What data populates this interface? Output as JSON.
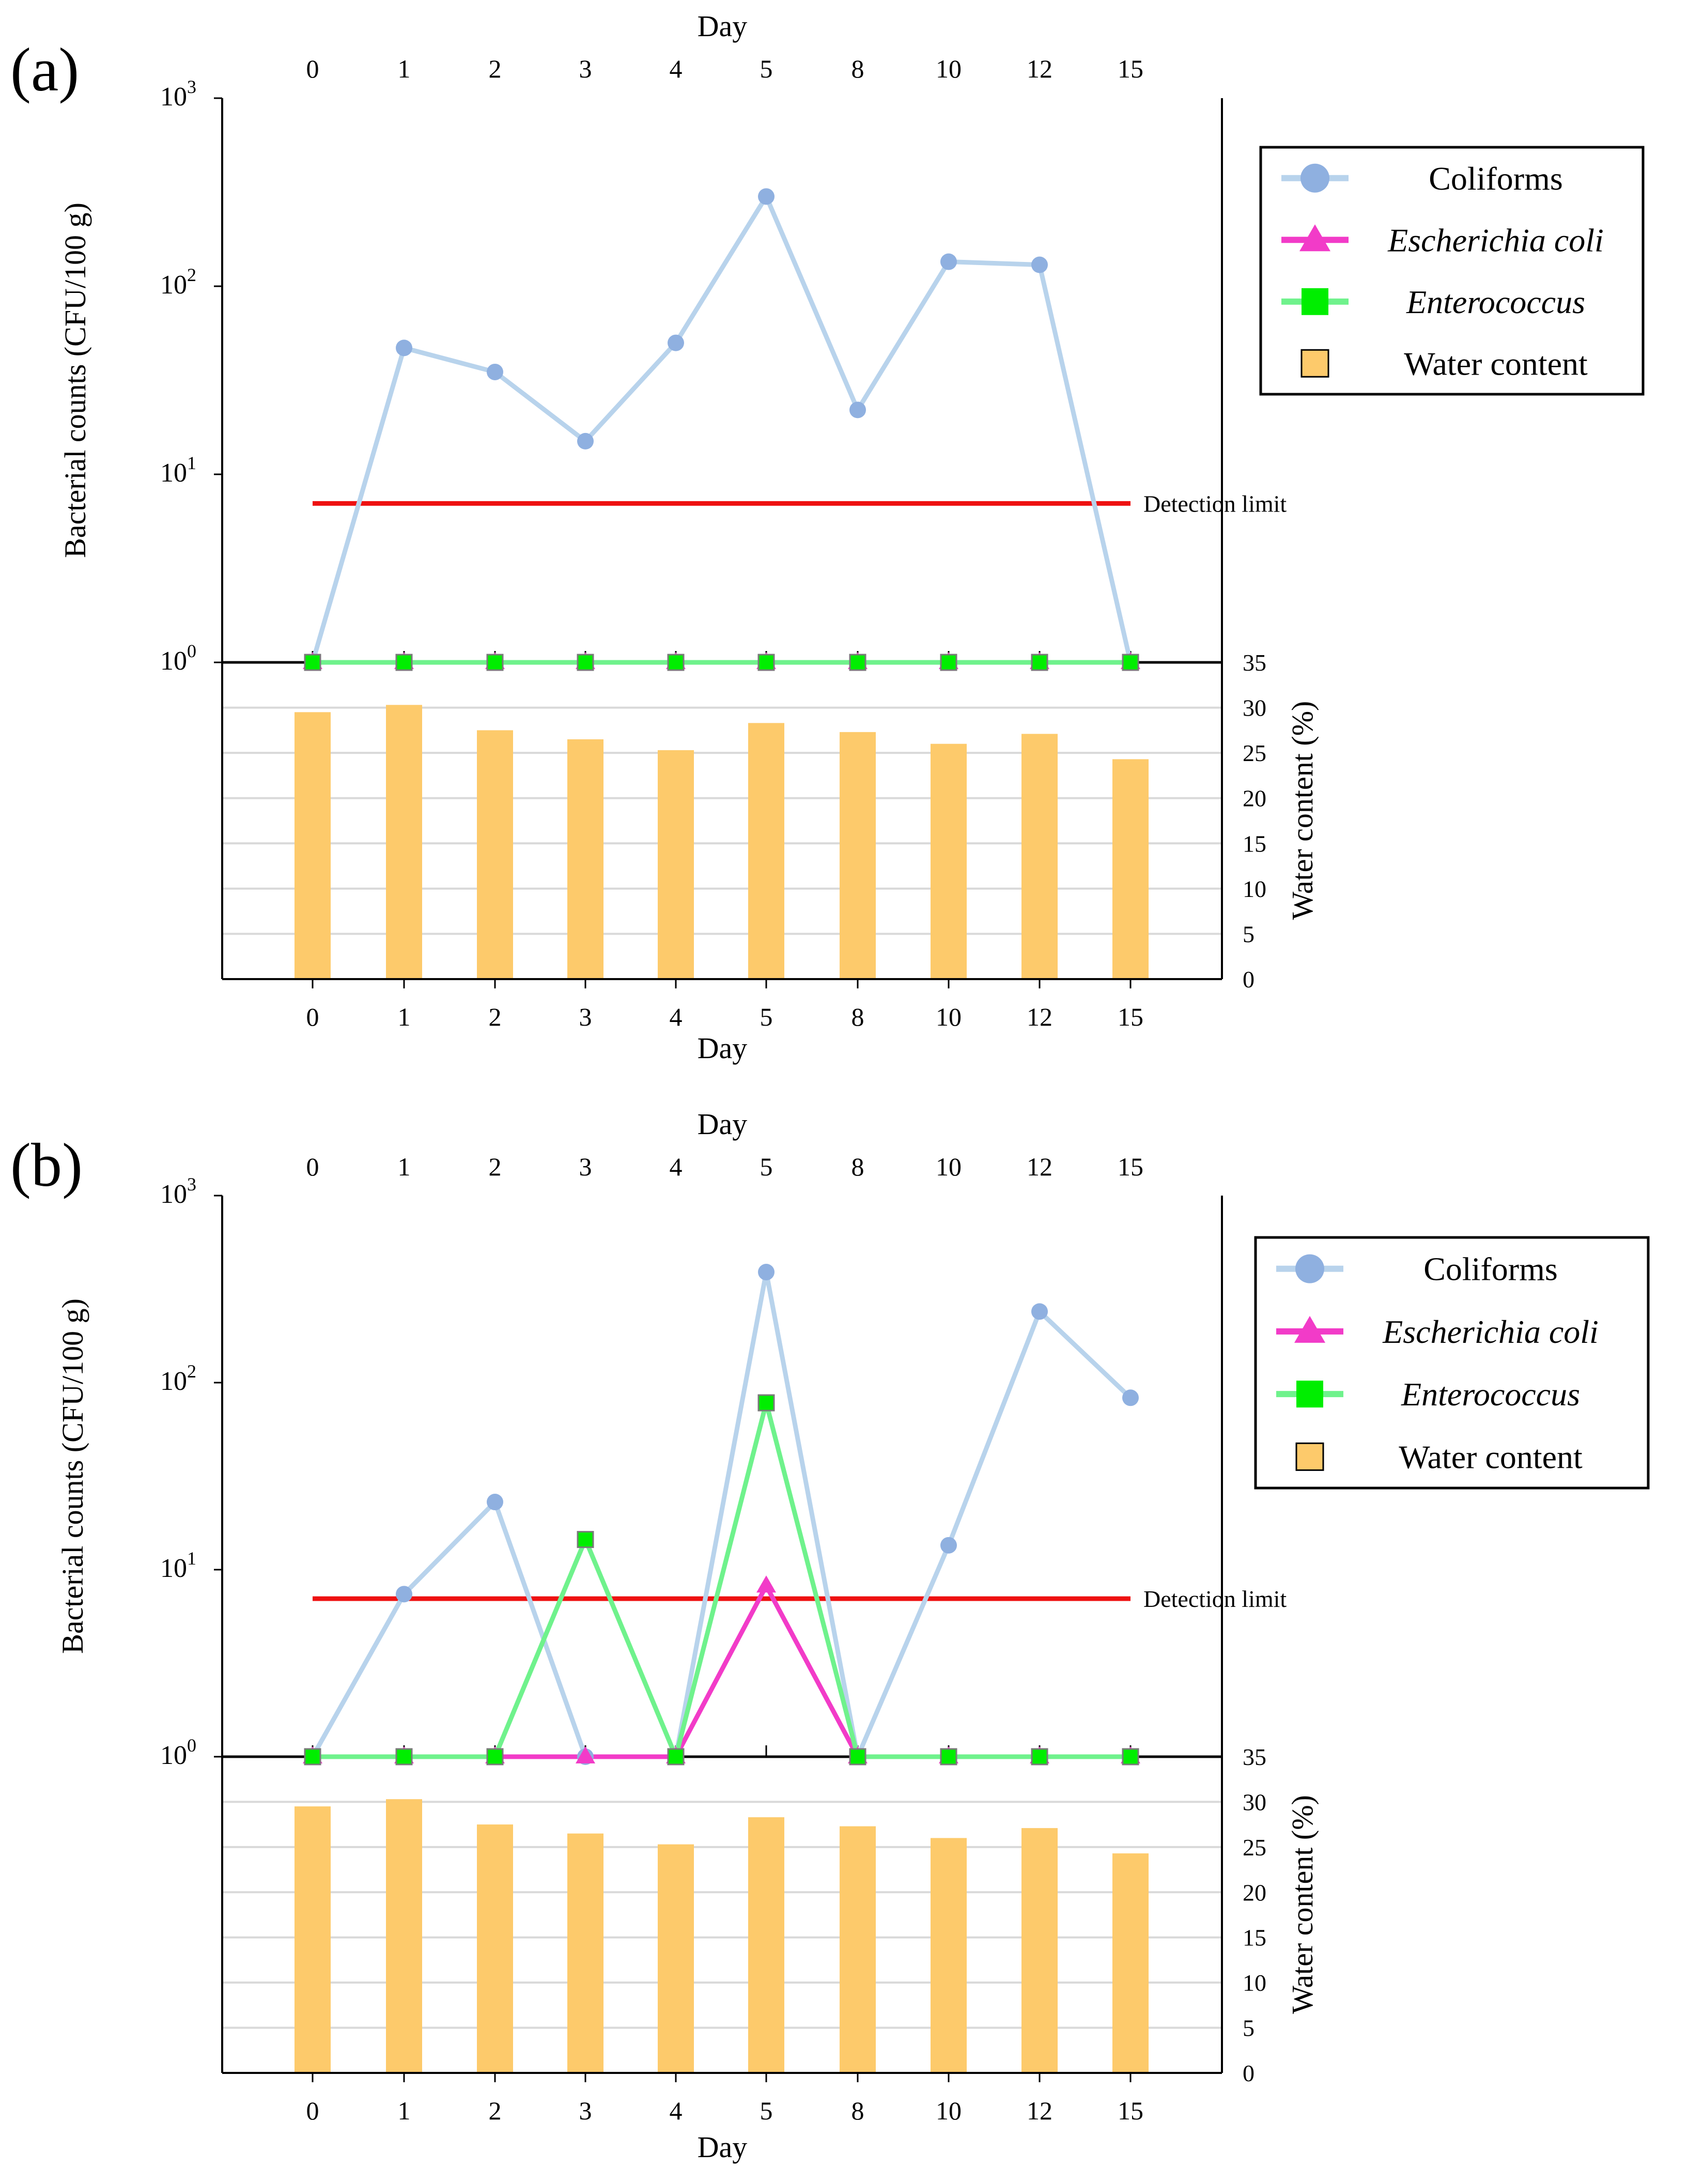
{
  "colors": {
    "coliforms_line": "#b8d3ec",
    "coliforms_marker": "#8fb0e0",
    "ecoli": "#f23bc8",
    "enterococcus_line": "#6ff28c",
    "enterococcus_marker": "#00ee00",
    "water": "#fdca6b",
    "detection": "#ee1111",
    "gridline": "#d9d9d9",
    "axis": "#000000"
  },
  "chart_data": [
    {
      "panel_label": "(a)",
      "type": "line+bar",
      "categories": [
        "0",
        "1",
        "2",
        "3",
        "4",
        "5",
        "8",
        "10",
        "12",
        "15"
      ],
      "x_top_label": "Day",
      "x_bottom_label": "Day",
      "ylabel": "Bacterial counts (CFU/100 g)",
      "ylabel2": "Water content  (%)",
      "yscale": "log",
      "ylim": [
        1,
        1000
      ],
      "y_ticks": [
        {
          "base": "10",
          "exp": "0"
        },
        {
          "base": "10",
          "exp": "1"
        },
        {
          "base": "10",
          "exp": "2"
        },
        {
          "base": "10",
          "exp": "3"
        }
      ],
      "y2lim": [
        0,
        35
      ],
      "y2_ticks": [
        "0",
        "5",
        "10",
        "15",
        "20",
        "25",
        "30",
        "35"
      ],
      "detection_limit": {
        "value": 7,
        "label": "Detection limit"
      },
      "series": [
        {
          "name": "Coliforms",
          "values": [
            1,
            47,
            35,
            15,
            50,
            300,
            22,
            135,
            130,
            1
          ]
        },
        {
          "name": "Escherichia coli",
          "values": [
            1,
            1,
            1,
            1,
            1,
            1,
            1,
            1,
            1,
            1
          ]
        },
        {
          "name": "Enterococcus",
          "values": [
            1,
            1,
            1,
            1,
            1,
            1,
            1,
            1,
            1,
            1
          ]
        }
      ],
      "water_content": {
        "name": "Water content",
        "values": [
          29.5,
          30.3,
          27.5,
          26.5,
          25.3,
          28.3,
          27.3,
          26.0,
          27.1,
          24.3
        ]
      },
      "legend": [
        "Coliforms",
        "Escherichia coli",
        "Enterococcus",
        "Water content"
      ]
    },
    {
      "panel_label": "(b)",
      "type": "line+bar",
      "categories": [
        "0",
        "1",
        "2",
        "3",
        "4",
        "5",
        "8",
        "10",
        "12",
        "15"
      ],
      "x_top_label": "Day",
      "x_bottom_label": "Day",
      "ylabel": "Bacterial counts (CFU/100 g)",
      "ylabel2": "Water content  (%)",
      "yscale": "log",
      "ylim": [
        1,
        1000
      ],
      "y_ticks": [
        {
          "base": "10",
          "exp": "0"
        },
        {
          "base": "10",
          "exp": "1"
        },
        {
          "base": "10",
          "exp": "2"
        },
        {
          "base": "10",
          "exp": "3"
        }
      ],
      "y2lim": [
        0,
        35
      ],
      "y2_ticks": [
        "0",
        "5",
        "10",
        "15",
        "20",
        "25",
        "30",
        "35"
      ],
      "detection_limit": {
        "value": 7,
        "label": "Detection limit"
      },
      "series": [
        {
          "name": "Coliforms",
          "values": [
            1,
            7.4,
            23,
            1,
            1,
            390,
            1,
            13.5,
            240,
            83
          ]
        },
        {
          "name": "Escherichia coli",
          "values": [
            1,
            1,
            1,
            1,
            1,
            8.2,
            1,
            1,
            1,
            1
          ]
        },
        {
          "name": "Enterococcus",
          "values": [
            1,
            1,
            1,
            14.5,
            1,
            78,
            1,
            1,
            1,
            1
          ]
        }
      ],
      "water_content": {
        "name": "Water content",
        "values": [
          29.5,
          30.3,
          27.5,
          26.5,
          25.3,
          28.3,
          27.3,
          26.0,
          27.1,
          24.3
        ]
      },
      "legend": [
        "Coliforms",
        "Escherichia coli",
        "Enterococcus",
        "Water content"
      ]
    }
  ]
}
